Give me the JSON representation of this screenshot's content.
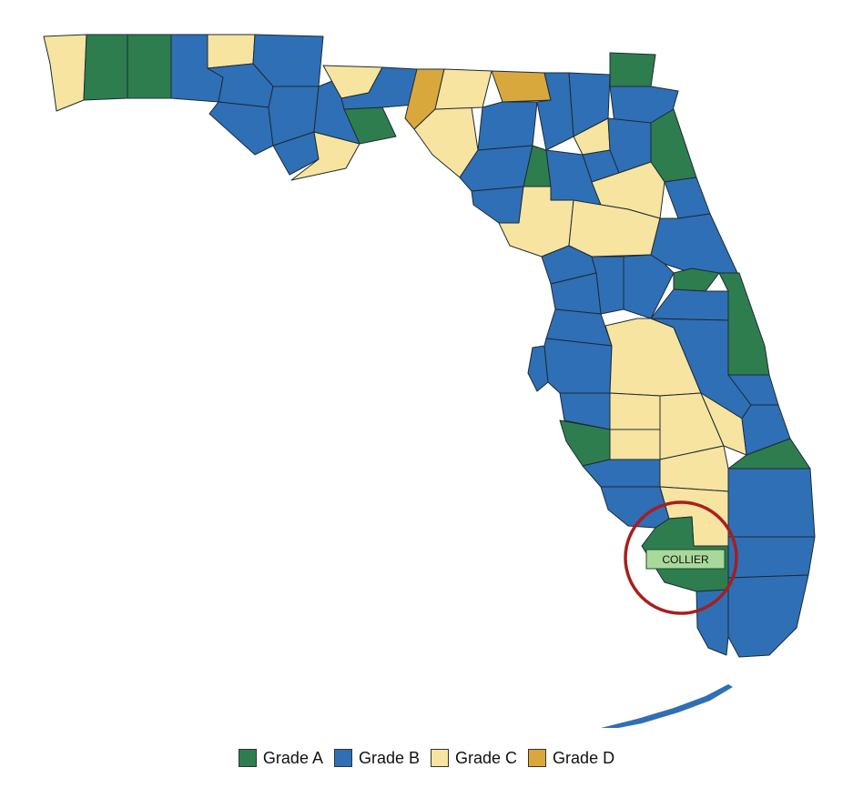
{
  "colors": {
    "grade_a": "#2e7d4f",
    "grade_b": "#2f6fb5",
    "grade_c": "#f7e4a0",
    "grade_d": "#d9a83d",
    "highlight_ring": "#a81e1e",
    "label_fill": "#a9d99a",
    "border": "#1d2b33"
  },
  "highlight": {
    "county": "COLLIER",
    "grade": "Grade A"
  },
  "legend": [
    {
      "label": "Grade A",
      "color": "#2e7d4f"
    },
    {
      "label": "Grade B",
      "color": "#2f6fb5"
    },
    {
      "label": "Grade C",
      "color": "#f7e4a0"
    },
    {
      "label": "Grade D",
      "color": "#d9a83d"
    }
  ]
}
